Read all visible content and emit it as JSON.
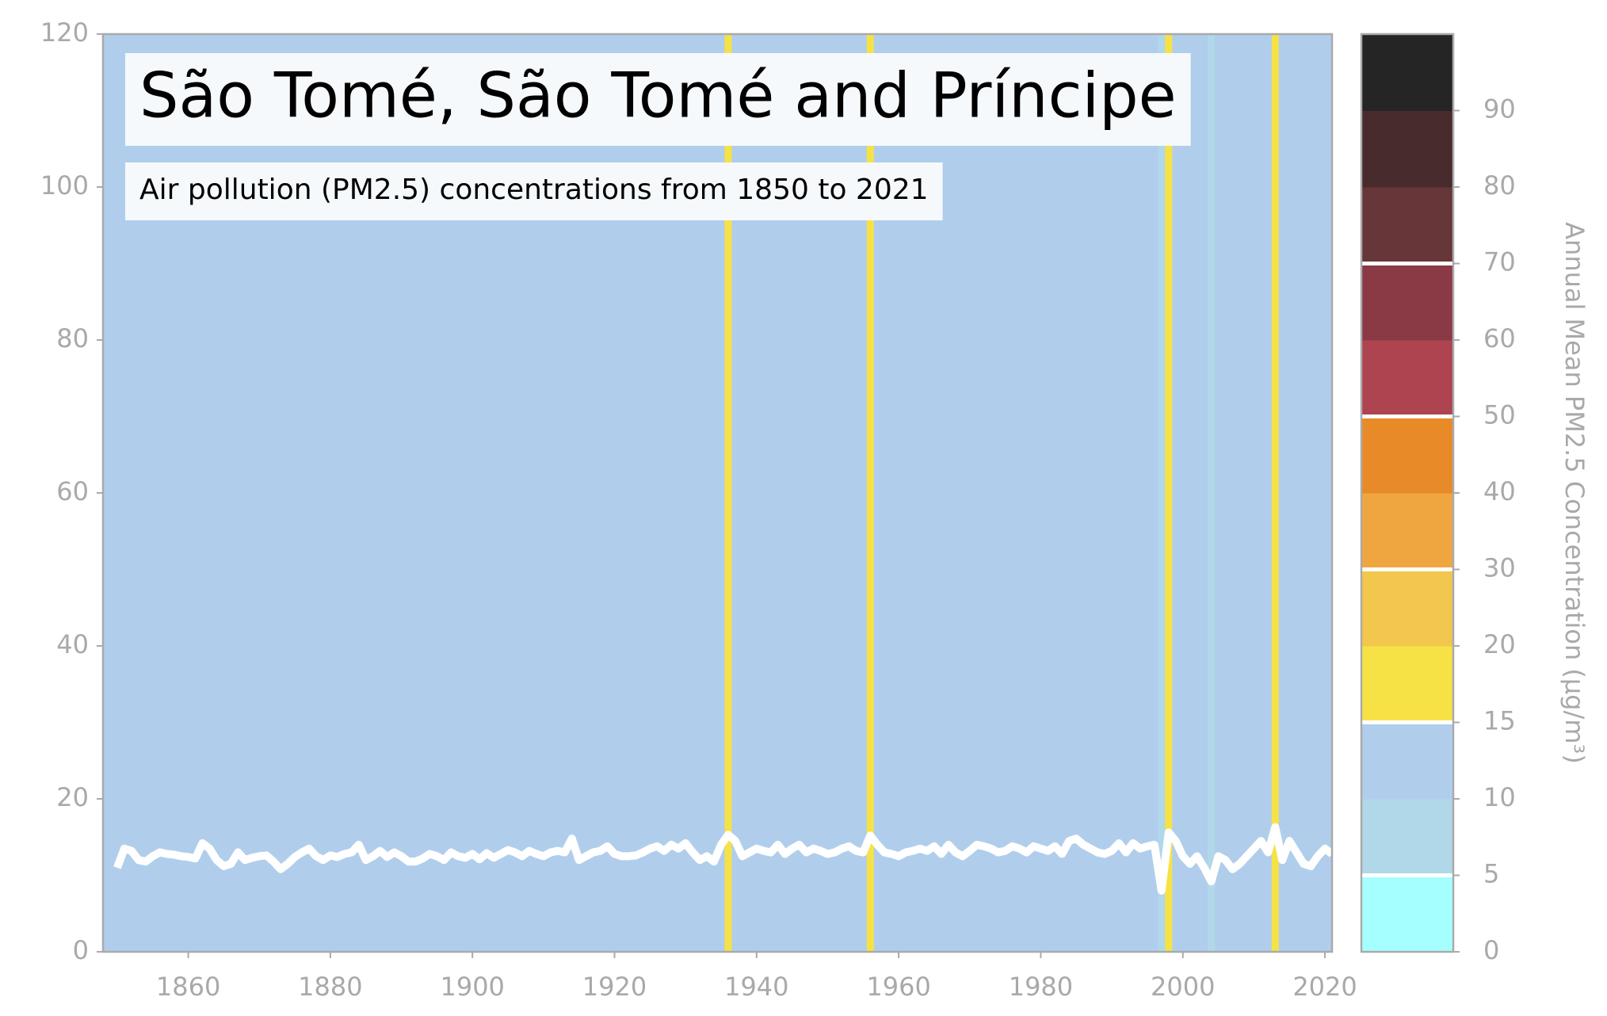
{
  "chart_data": {
    "type": "line",
    "title": "São Tomé, São Tomé and Príncipe",
    "subtitle": "Air pollution (PM2.5) concentrations from 1850 to 2021",
    "x": [
      1850,
      1851,
      1852,
      1853,
      1854,
      1855,
      1856,
      1857,
      1858,
      1859,
      1860,
      1861,
      1862,
      1863,
      1864,
      1865,
      1866,
      1867,
      1868,
      1869,
      1870,
      1871,
      1872,
      1873,
      1874,
      1875,
      1876,
      1877,
      1878,
      1879,
      1880,
      1881,
      1882,
      1883,
      1884,
      1885,
      1886,
      1887,
      1888,
      1889,
      1890,
      1891,
      1892,
      1893,
      1894,
      1895,
      1896,
      1897,
      1898,
      1899,
      1900,
      1901,
      1902,
      1903,
      1904,
      1905,
      1906,
      1907,
      1908,
      1909,
      1910,
      1911,
      1912,
      1913,
      1914,
      1915,
      1916,
      1917,
      1918,
      1919,
      1920,
      1921,
      1922,
      1923,
      1924,
      1925,
      1926,
      1927,
      1928,
      1929,
      1930,
      1931,
      1932,
      1933,
      1934,
      1935,
      1936,
      1937,
      1938,
      1939,
      1940,
      1941,
      1942,
      1943,
      1944,
      1945,
      1946,
      1947,
      1948,
      1949,
      1950,
      1951,
      1952,
      1953,
      1954,
      1955,
      1956,
      1957,
      1958,
      1959,
      1960,
      1961,
      1962,
      1963,
      1964,
      1965,
      1966,
      1967,
      1968,
      1969,
      1970,
      1971,
      1972,
      1973,
      1974,
      1975,
      1976,
      1977,
      1978,
      1979,
      1980,
      1981,
      1982,
      1983,
      1984,
      1985,
      1986,
      1987,
      1988,
      1989,
      1990,
      1991,
      1992,
      1993,
      1994,
      1995,
      1996,
      1997,
      1998,
      1999,
      2000,
      2001,
      2002,
      2003,
      2004,
      2005,
      2006,
      2007,
      2008,
      2009,
      2010,
      2011,
      2012,
      2013,
      2014,
      2015,
      2016,
      2017,
      2018,
      2019,
      2020,
      2021
    ],
    "values": [
      11.0,
      13.5,
      13.2,
      12.0,
      11.8,
      12.5,
      13.0,
      12.8,
      12.7,
      12.5,
      12.4,
      12.2,
      14.2,
      13.5,
      12.0,
      11.2,
      11.5,
      13.0,
      12.0,
      12.3,
      12.5,
      12.6,
      11.8,
      10.8,
      11.5,
      12.4,
      13.0,
      13.5,
      12.5,
      12.0,
      12.6,
      12.4,
      12.8,
      13.0,
      14.0,
      12.0,
      12.5,
      13.2,
      12.4,
      13.0,
      12.5,
      11.8,
      11.8,
      12.2,
      12.8,
      12.5,
      12.0,
      13.0,
      12.5,
      12.3,
      12.8,
      12.1,
      12.9,
      12.3,
      12.8,
      13.3,
      13.0,
      12.5,
      13.2,
      12.8,
      12.5,
      13.0,
      13.2,
      13.0,
      14.8,
      12.0,
      12.5,
      13.0,
      13.2,
      13.8,
      12.8,
      12.5,
      12.5,
      12.6,
      13.0,
      13.5,
      13.8,
      13.2,
      14.0,
      13.5,
      14.2,
      13.0,
      12.0,
      12.5,
      11.8,
      14.0,
      15.3,
      14.5,
      12.5,
      13.0,
      13.5,
      13.2,
      13.0,
      14.0,
      12.8,
      13.5,
      14.0,
      13.0,
      13.5,
      13.2,
      12.8,
      13.0,
      13.5,
      13.8,
      13.2,
      13.0,
      15.2,
      14.0,
      13.0,
      12.8,
      12.5,
      13.0,
      13.2,
      13.5,
      13.2,
      13.8,
      12.8,
      14.0,
      13.0,
      12.5,
      13.2,
      14.0,
      13.8,
      13.5,
      13.0,
      13.2,
      13.8,
      13.5,
      13.0,
      13.8,
      13.5,
      13.2,
      13.8,
      12.8,
      14.5,
      14.8,
      14.0,
      13.5,
      13.0,
      12.8,
      13.2,
      14.2,
      13.0,
      14.2,
      13.5,
      13.8,
      14.0,
      8.0,
      15.6,
      14.5,
      12.5,
      11.5,
      12.5,
      11.0,
      9.2,
      12.5,
      12.0,
      10.8,
      11.5,
      12.5,
      13.5,
      14.5,
      13.0,
      16.3,
      12.0,
      14.5,
      13.0,
      11.5,
      11.2,
      12.5,
      13.5,
      12.8
    ],
    "color": "#ffffff",
    "xlim": [
      1848,
      2021
    ],
    "xticks": [
      1860,
      1880,
      1900,
      1920,
      1940,
      1960,
      1980,
      2000,
      2020
    ],
    "ylim": [
      0,
      120
    ],
    "yticks": [
      0,
      20,
      40,
      60,
      80,
      100,
      120
    ],
    "colorbar": {
      "label": "Annual Mean PM2.5 Concentration (μg/m³)",
      "boundaries": [
        0,
        5,
        10,
        15,
        20,
        30,
        40,
        50,
        60,
        70,
        80,
        90,
        100
      ],
      "colors": [
        "#a6ffff",
        "#b0d8e8",
        "#b0ceec",
        "#f7e246",
        "#f2c74d",
        "#f0a640",
        "#e88a28",
        "#ae4450",
        "#8a3a44",
        "#663638",
        "#472b2d",
        "#252525"
      ],
      "ticks": [
        0,
        5,
        10,
        15,
        20,
        30,
        40,
        50,
        60,
        70,
        80,
        90
      ],
      "lines": [
        5,
        15,
        30,
        50,
        70
      ]
    }
  }
}
